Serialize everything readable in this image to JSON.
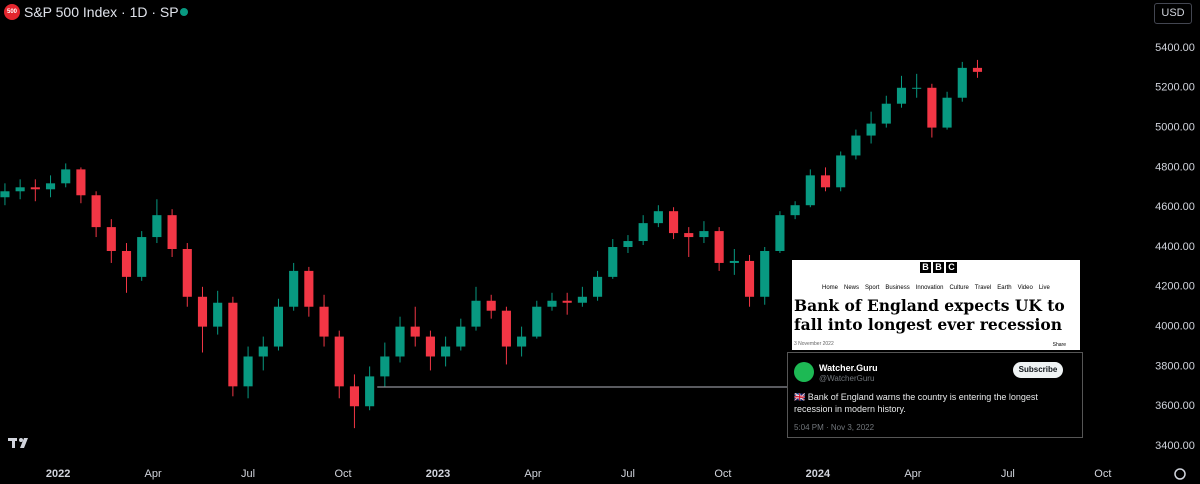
{
  "header": {
    "logo": "500",
    "title": "S&P 500 Index · 1D · SP",
    "currency": "USD"
  },
  "chart_data": {
    "type": "candlestick",
    "x": [
      2021.86,
      2021.9,
      2021.94,
      2021.98,
      2022.02,
      2022.06,
      2022.1,
      2022.14,
      2022.18,
      2022.22,
      2022.26,
      2022.3,
      2022.34,
      2022.38,
      2022.42,
      2022.46,
      2022.5,
      2022.54,
      2022.58,
      2022.62,
      2022.66,
      2022.7,
      2022.74,
      2022.78,
      2022.82,
      2022.86,
      2022.9,
      2022.94,
      2022.98,
      2023.02,
      2023.06,
      2023.1,
      2023.14,
      2023.18,
      2023.22,
      2023.26,
      2023.3,
      2023.34,
      2023.38,
      2023.42,
      2023.46,
      2023.5,
      2023.54,
      2023.58,
      2023.62,
      2023.66,
      2023.7,
      2023.74,
      2023.78,
      2023.82,
      2023.86,
      2023.9,
      2023.94,
      2023.98,
      2024.02,
      2024.06,
      2024.1,
      2024.14,
      2024.18,
      2024.22,
      2024.26,
      2024.3,
      2024.34,
      2024.38,
      2024.42
    ],
    "open": [
      4650,
      4680,
      4700,
      4690,
      4720,
      4790,
      4660,
      4500,
      4380,
      4250,
      4450,
      4560,
      4390,
      4150,
      4000,
      4120,
      3700,
      3850,
      3900,
      4100,
      4280,
      4100,
      3950,
      3700,
      3600,
      3750,
      3850,
      4000,
      3950,
      3850,
      3900,
      4000,
      4130,
      4080,
      3900,
      3950,
      4100,
      4130,
      4120,
      4150,
      4250,
      4400,
      4430,
      4520,
      4580,
      4470,
      4450,
      4480,
      4320,
      4330,
      4150,
      4380,
      4560,
      4610,
      4760,
      4700,
      4860,
      4960,
      5020,
      5120,
      5200,
      5200,
      5000,
      5150,
      5300
    ],
    "high": [
      4720,
      4740,
      4740,
      4760,
      4820,
      4800,
      4680,
      4540,
      4420,
      4480,
      4640,
      4590,
      4420,
      4200,
      4180,
      4150,
      3900,
      3950,
      4140,
      4320,
      4300,
      4160,
      3980,
      3760,
      3800,
      3920,
      4050,
      4100,
      3980,
      3950,
      4040,
      4200,
      4160,
      4100,
      4000,
      4130,
      4170,
      4170,
      4200,
      4280,
      4440,
      4460,
      4560,
      4610,
      4600,
      4500,
      4530,
      4500,
      4390,
      4360,
      4400,
      4580,
      4630,
      4790,
      4800,
      4880,
      4990,
      5080,
      5160,
      5260,
      5270,
      5220,
      5180,
      5330,
      5340
    ],
    "low": [
      4610,
      4640,
      4630,
      4650,
      4700,
      4620,
      4450,
      4320,
      4170,
      4230,
      4420,
      4350,
      4100,
      3870,
      3960,
      3650,
      3640,
      3780,
      3880,
      4080,
      4050,
      3900,
      3640,
      3490,
      3580,
      3700,
      3820,
      3900,
      3780,
      3800,
      3880,
      3980,
      4040,
      3810,
      3850,
      3940,
      4080,
      4060,
      4100,
      4130,
      4240,
      4370,
      4410,
      4500,
      4440,
      4350,
      4420,
      4280,
      4260,
      4100,
      4110,
      4370,
      4540,
      4600,
      4680,
      4680,
      4840,
      4920,
      5000,
      5100,
      5150,
      4950,
      4990,
      5130,
      5250
    ],
    "close": [
      4680,
      4700,
      4690,
      4720,
      4790,
      4660,
      4500,
      4380,
      4250,
      4450,
      4560,
      4390,
      4150,
      4000,
      4120,
      3700,
      3850,
      3900,
      4100,
      4280,
      4100,
      3950,
      3700,
      3600,
      3750,
      3850,
      4000,
      3950,
      3850,
      3900,
      4000,
      4130,
      4080,
      3900,
      3950,
      4100,
      4130,
      4120,
      4150,
      4250,
      4400,
      4430,
      4520,
      4580,
      4470,
      4450,
      4480,
      4320,
      4330,
      4150,
      4380,
      4560,
      4610,
      4760,
      4700,
      4860,
      4960,
      5020,
      5120,
      5200,
      5200,
      5000,
      5150,
      5300,
      5280
    ],
    "up_color": "#089981",
    "down_color": "#f23645",
    "xlim": [
      2021.847,
      2024.861
    ],
    "xticks": [
      {
        "value": 2022,
        "label": "2022"
      },
      {
        "value": 2022.25,
        "label": "Apr"
      },
      {
        "value": 2022.5,
        "label": "Jul"
      },
      {
        "value": 2022.75,
        "label": "Oct"
      },
      {
        "value": 2023,
        "label": "2023"
      },
      {
        "value": 2023.25,
        "label": "Apr"
      },
      {
        "value": 2023.5,
        "label": "Jul"
      },
      {
        "value": 2023.75,
        "label": "Oct"
      },
      {
        "value": 2024,
        "label": "2024"
      },
      {
        "value": 2024.25,
        "label": "Apr"
      },
      {
        "value": 2024.5,
        "label": "Jul"
      },
      {
        "value": 2024.75,
        "label": "Oct"
      }
    ],
    "ylim": [
      3340,
      5641
    ],
    "yticks": [
      {
        "value": 3400,
        "label": "3400.00"
      },
      {
        "value": 3600,
        "label": "3600.00"
      },
      {
        "value": 3800,
        "label": "3800.00"
      },
      {
        "value": 4000,
        "label": "4000.00"
      },
      {
        "value": 4200,
        "label": "4200.00"
      },
      {
        "value": 4400,
        "label": "4400.00"
      },
      {
        "value": 4600,
        "label": "4600.00"
      },
      {
        "value": 4800,
        "label": "4800.00"
      },
      {
        "value": 5000,
        "label": "5000.00"
      },
      {
        "value": 5200,
        "label": "5200.00"
      },
      {
        "value": 5400,
        "label": "5400.00"
      }
    ],
    "level_line": {
      "value": 3697,
      "x": [
        2022.84,
        2023.92
      ],
      "color": "#b2b5be"
    }
  },
  "article": {
    "logo": [
      "B",
      "B",
      "C"
    ],
    "nav": [
      "Home",
      "News",
      "Sport",
      "Business",
      "Innovation",
      "Culture",
      "Travel",
      "Earth",
      "Video",
      "Live"
    ],
    "headline": "Bank of England expects UK to fall into longest ever recession",
    "date": "3 November 2022",
    "share": "Share"
  },
  "tweet": {
    "name": "Watcher.Guru",
    "handle": "@WatcherGuru",
    "button": "Subscribe",
    "text": "🇬🇧 Bank of England warns the country is entering the longest recession in modern history.",
    "time": "5:04 PM · Nov 3, 2022"
  }
}
